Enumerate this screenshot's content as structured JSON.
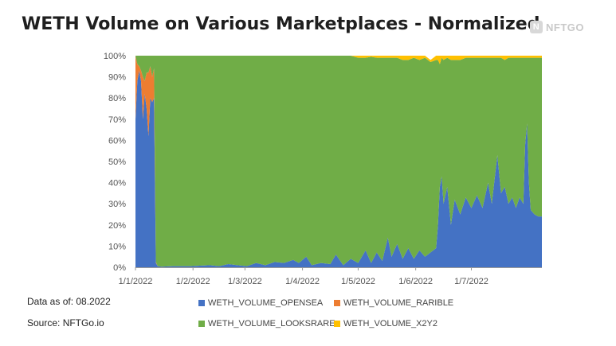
{
  "header": {
    "title": "WETH Volume on Various Marketplaces - Normalized",
    "brand": "NFTGO",
    "brand_icon": "nftgo-logo-icon"
  },
  "footer": {
    "data_as_of": "Data as of: 08.2022",
    "source": "Source: NFTGo.io"
  },
  "chart_data": {
    "type": "area",
    "stacked": true,
    "normalized": true,
    "title": "WETH Volume on Various Marketplaces - Normalized",
    "x_ticks": [
      "1/1/2022",
      "1/2/2022",
      "1/3/2022",
      "1/4/2022",
      "1/5/2022",
      "1/6/2022",
      "1/7/2022"
    ],
    "x_tick_days": [
      0,
      31,
      59,
      90,
      120,
      151,
      181
    ],
    "x_range_days": [
      0,
      219
    ],
    "y_ticks": [
      "0%",
      "10%",
      "20%",
      "30%",
      "40%",
      "50%",
      "60%",
      "70%",
      "80%",
      "90%",
      "100%"
    ],
    "ylim": [
      0,
      100
    ],
    "grid": false,
    "legend_position": "bottom",
    "colors": {
      "WETH_VOLUME_OPENSEA": "#4472c4",
      "WETH_VOLUME_RARIBLE": "#ed7d31",
      "WETH_VOLUME_LOOKSRARE": "#70ad47",
      "WETH_VOLUME_X2Y2": "#ffc000"
    },
    "series": [
      {
        "name": "WETH_VOLUME_OPENSEA",
        "values": [
          [
            0,
            70
          ],
          [
            1,
            88
          ],
          [
            2,
            93
          ],
          [
            3,
            88
          ],
          [
            4,
            70
          ],
          [
            5,
            82
          ],
          [
            6,
            75
          ],
          [
            7,
            62
          ],
          [
            8,
            80
          ],
          [
            9,
            78
          ],
          [
            10,
            80
          ],
          [
            11,
            2
          ],
          [
            12,
            0.5
          ],
          [
            14,
            0.3
          ],
          [
            20,
            0.5
          ],
          [
            30,
            0.5
          ],
          [
            40,
            1
          ],
          [
            45,
            0.5
          ],
          [
            50,
            1.5
          ],
          [
            55,
            1
          ],
          [
            60,
            0.5
          ],
          [
            65,
            2
          ],
          [
            70,
            1
          ],
          [
            75,
            2.5
          ],
          [
            80,
            2
          ],
          [
            85,
            3.5
          ],
          [
            88,
            2
          ],
          [
            92,
            5
          ],
          [
            95,
            1
          ],
          [
            100,
            2
          ],
          [
            105,
            1.5
          ],
          [
            108,
            6
          ],
          [
            112,
            1
          ],
          [
            116,
            4
          ],
          [
            120,
            2
          ],
          [
            124,
            8
          ],
          [
            127,
            2
          ],
          [
            130,
            7
          ],
          [
            133,
            3
          ],
          [
            136,
            14
          ],
          [
            138,
            5
          ],
          [
            141,
            11
          ],
          [
            144,
            4
          ],
          [
            147,
            9
          ],
          [
            150,
            4
          ],
          [
            153,
            8
          ],
          [
            156,
            5
          ],
          [
            159,
            7
          ],
          [
            162,
            9
          ],
          [
            163,
            20
          ],
          [
            164,
            38
          ],
          [
            165,
            43
          ],
          [
            166,
            30
          ],
          [
            168,
            38
          ],
          [
            170,
            20
          ],
          [
            172,
            32
          ],
          [
            175,
            25
          ],
          [
            178,
            33
          ],
          [
            181,
            28
          ],
          [
            184,
            34
          ],
          [
            187,
            28
          ],
          [
            190,
            40
          ],
          [
            192,
            30
          ],
          [
            195,
            53
          ],
          [
            197,
            35
          ],
          [
            199,
            38
          ],
          [
            201,
            30
          ],
          [
            203,
            33
          ],
          [
            205,
            28
          ],
          [
            207,
            33
          ],
          [
            209,
            30
          ],
          [
            210,
            58
          ],
          [
            211,
            68
          ],
          [
            212,
            40
          ],
          [
            213,
            27
          ],
          [
            215,
            25
          ],
          [
            217,
            24
          ],
          [
            219,
            24
          ]
        ]
      },
      {
        "name": "WETH_VOLUME_RARIBLE",
        "values": [
          [
            0,
            30
          ],
          [
            1,
            8
          ],
          [
            2,
            2
          ],
          [
            3,
            5
          ],
          [
            4,
            20
          ],
          [
            5,
            6
          ],
          [
            6,
            17
          ],
          [
            7,
            30
          ],
          [
            8,
            15
          ],
          [
            9,
            12
          ],
          [
            10,
            14
          ],
          [
            11,
            0.5
          ],
          [
            12,
            0
          ],
          [
            219,
            0
          ]
        ]
      },
      {
        "name": "WETH_VOLUME_LOOKSRARE",
        "values": [
          [
            0,
            0
          ],
          [
            11,
            97.5
          ],
          [
            12,
            99.5
          ],
          [
            14,
            99.7
          ],
          [
            20,
            99.5
          ],
          [
            30,
            99.5
          ],
          [
            40,
            99
          ],
          [
            45,
            99.5
          ],
          [
            50,
            98.5
          ],
          [
            55,
            99
          ],
          [
            60,
            99.5
          ],
          [
            65,
            98
          ],
          [
            70,
            99
          ],
          [
            75,
            97.5
          ],
          [
            80,
            98
          ],
          [
            85,
            96.5
          ],
          [
            88,
            98
          ],
          [
            90,
            99.3
          ],
          [
            92,
            95
          ],
          [
            95,
            99
          ],
          [
            100,
            98
          ],
          [
            105,
            98.5
          ],
          [
            108,
            94
          ],
          [
            112,
            99
          ],
          [
            116,
            96
          ],
          [
            120,
            97
          ],
          [
            124,
            91
          ],
          [
            127,
            97.5
          ],
          [
            130,
            92
          ],
          [
            133,
            96
          ],
          [
            136,
            85
          ],
          [
            138,
            94
          ],
          [
            141,
            88
          ],
          [
            144,
            94
          ],
          [
            147,
            89
          ],
          [
            150,
            95
          ],
          [
            153,
            90
          ],
          [
            156,
            94
          ],
          [
            159,
            90
          ],
          [
            162,
            89
          ],
          [
            163,
            78
          ],
          [
            164,
            58
          ],
          [
            165,
            56
          ],
          [
            166,
            68
          ],
          [
            168,
            61
          ],
          [
            170,
            78
          ],
          [
            172,
            66
          ],
          [
            175,
            73
          ],
          [
            178,
            66
          ],
          [
            181,
            71
          ],
          [
            184,
            65
          ],
          [
            187,
            71
          ],
          [
            190,
            59
          ],
          [
            192,
            69
          ],
          [
            195,
            46
          ],
          [
            197,
            64
          ],
          [
            199,
            60
          ],
          [
            201,
            69
          ],
          [
            203,
            66
          ],
          [
            205,
            71
          ],
          [
            207,
            66
          ],
          [
            209,
            69
          ],
          [
            210,
            41
          ],
          [
            211,
            31
          ],
          [
            212,
            59
          ],
          [
            213,
            72
          ],
          [
            215,
            74
          ],
          [
            217,
            75
          ],
          [
            219,
            75
          ]
        ]
      },
      {
        "name": "WETH_VOLUME_X2Y2",
        "values": [
          [
            0,
            0
          ],
          [
            89,
            0
          ],
          [
            90,
            0.7
          ],
          [
            92,
            0
          ],
          [
            105,
            0
          ],
          [
            110,
            1
          ],
          [
            112,
            0
          ],
          [
            120,
            1
          ],
          [
            124,
            1
          ],
          [
            127,
            0.5
          ],
          [
            130,
            1
          ],
          [
            133,
            1
          ],
          [
            136,
            1
          ],
          [
            140,
            2
          ],
          [
            144,
            2
          ],
          [
            147,
            2
          ],
          [
            150,
            1
          ],
          [
            153,
            2
          ],
          [
            156,
            1
          ],
          [
            159,
            1
          ],
          [
            162,
            2
          ],
          [
            163,
            2
          ],
          [
            164,
            4
          ],
          [
            165,
            1
          ],
          [
            166,
            2
          ],
          [
            168,
            1
          ],
          [
            170,
            2
          ],
          [
            172,
            2
          ],
          [
            175,
            2
          ],
          [
            178,
            1
          ],
          [
            181,
            1
          ],
          [
            184,
            1
          ],
          [
            187,
            1
          ],
          [
            190,
            1
          ],
          [
            192,
            1
          ],
          [
            195,
            1
          ],
          [
            197,
            1
          ],
          [
            199,
            2
          ],
          [
            201,
            1
          ],
          [
            203,
            1
          ],
          [
            205,
            1
          ],
          [
            207,
            1
          ],
          [
            209,
            1
          ],
          [
            210,
            1
          ],
          [
            211,
            1
          ],
          [
            212,
            1
          ],
          [
            213,
            1
          ],
          [
            215,
            1
          ],
          [
            217,
            1
          ],
          [
            219,
            1
          ]
        ]
      }
    ]
  }
}
